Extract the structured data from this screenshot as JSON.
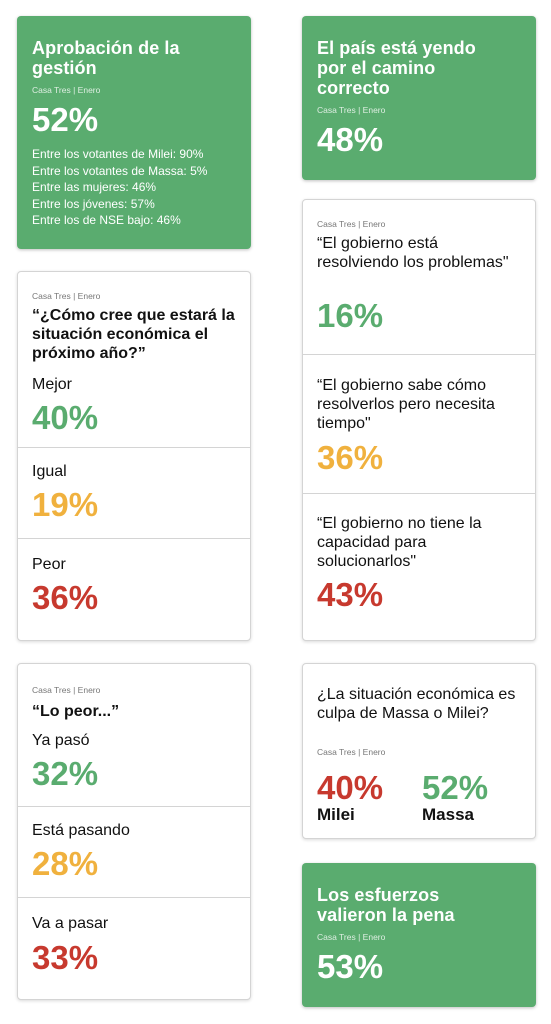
{
  "card_approval": {
    "title": "Aprobación de la gestión",
    "source": "Casa Tres | Enero",
    "value": "52%",
    "breakdown": [
      "Entre los votantes de Milei: 90%",
      "Entre los votantes de Massa: 5%",
      "Entre las mujeres: 46%",
      "Entre los jóvenes: 57%",
      "Entre los de NSE bajo: 46%"
    ]
  },
  "card_direction": {
    "title": "El país está yendo por el camino correcto",
    "source": "Casa Tres | Enero",
    "value": "48%"
  },
  "card_economy": {
    "source": "Casa Tres | Enero",
    "question": "“¿Cómo cree que estará la situación económica el próximo año?”",
    "options": [
      {
        "label": "Mejor",
        "value": "40%"
      },
      {
        "label": "Igual",
        "value": "19%"
      },
      {
        "label": "Peor",
        "value": "36%"
      }
    ]
  },
  "card_government": {
    "source": "Casa Tres | Enero",
    "options": [
      {
        "label": "“El gobierno está resolviendo los problemas\"",
        "value": "16%"
      },
      {
        "label": "“El gobierno sabe cómo resolverlos pero necesita tiempo\"",
        "value": "36%"
      },
      {
        "label": "“El gobierno no tiene la capacidad para solucionarlos\"",
        "value": "43%"
      }
    ]
  },
  "card_worst": {
    "source": "Casa Tres | Enero",
    "question": "“Lo peor...”",
    "options": [
      {
        "label": "Ya pasó",
        "value": "32%"
      },
      {
        "label": "Está pasando",
        "value": "28%"
      },
      {
        "label": "Va a pasar",
        "value": "33%"
      }
    ]
  },
  "card_blame": {
    "question": "¿La situación económica es culpa de Massa o Milei?",
    "source": "Casa Tres | Enero",
    "options": [
      {
        "label": "Milei",
        "value": "40%"
      },
      {
        "label": "Massa",
        "value": "52%"
      }
    ]
  },
  "card_effort": {
    "title": "Los esfuerzos valieron la pena",
    "source": "Casa Tres | Enero",
    "value": "53%"
  },
  "colors": {
    "green": "#5aac6f",
    "yellow": "#f0b13e",
    "red": "#c7392e"
  }
}
